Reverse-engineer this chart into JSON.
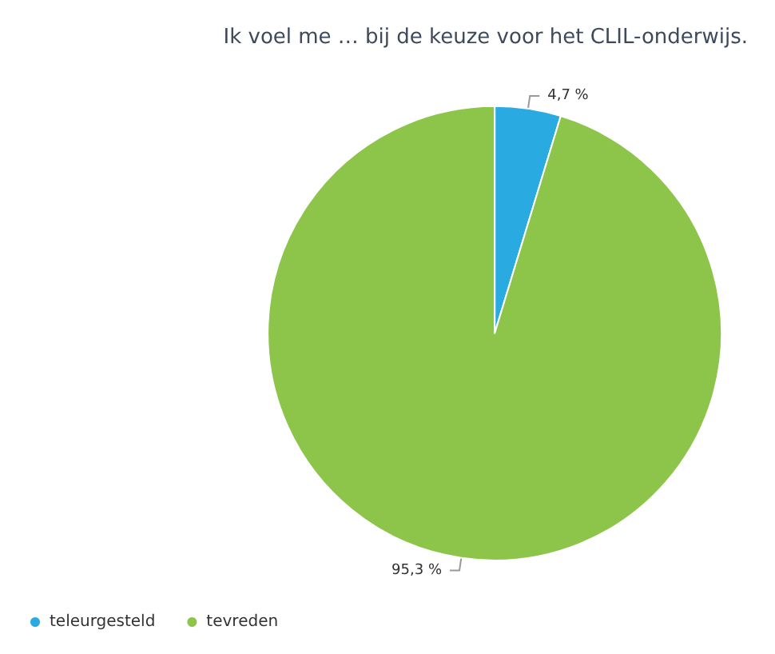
{
  "chart_data": {
    "type": "pie",
    "title": "Ik voel me … bij de keuze voor het CLIL-onderwijs.",
    "categories": [
      "teleurgesteld",
      "tevreden"
    ],
    "values": [
      4.7,
      95.3
    ],
    "colors": [
      "#29abe2",
      "#8dc54b"
    ],
    "value_labels": [
      "4,7 %",
      "95,3 %"
    ],
    "legend": "bottom left"
  }
}
